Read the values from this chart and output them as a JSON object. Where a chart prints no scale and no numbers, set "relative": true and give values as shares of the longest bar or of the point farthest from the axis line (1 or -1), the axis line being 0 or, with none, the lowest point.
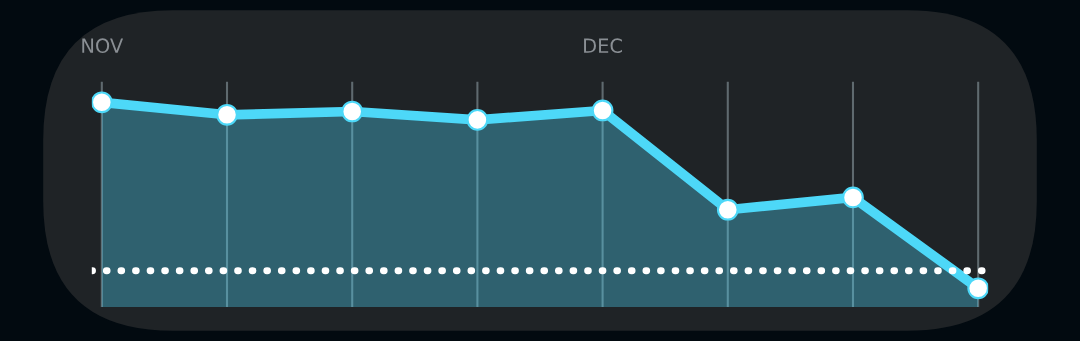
{
  "chart_data": {
    "type": "area",
    "relative": true,
    "categories": [
      "NOV",
      null,
      null,
      null,
      "DEC",
      null,
      null,
      null
    ],
    "series": [
      {
        "color": "#4dd8f8",
        "values": [
          1,
          0.939,
          0.955,
          0.914,
          0.96,
          0.475,
          0.535,
          0.091
        ]
      }
    ],
    "ref_lines": [
      {
        "axis": "y",
        "value": 0.177,
        "color": "#ffffff",
        "line_style": "dotted"
      }
    ],
    "grid": "x",
    "marker": "circle",
    "line_style": "solid"
  }
}
